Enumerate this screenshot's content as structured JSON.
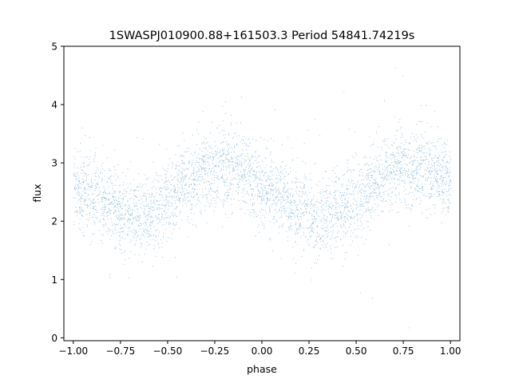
{
  "chart_data": {
    "type": "scatter",
    "title": "1SWASPJ010900.88+161503.3 Period 54841.74219s",
    "xlabel": "phase",
    "ylabel": "flux",
    "xlim": [
      -1.05,
      1.05
    ],
    "ylim": [
      -0.05,
      5.0
    ],
    "xticks": [
      -1.0,
      -0.75,
      -0.5,
      -0.25,
      0.0,
      0.25,
      0.5,
      0.75,
      1.0
    ],
    "xtick_labels": [
      "−1.00",
      "−0.75",
      "−0.50",
      "−0.25",
      "0.00",
      "0.25",
      "0.50",
      "0.75",
      "1.00"
    ],
    "yticks": [
      0,
      1,
      2,
      3,
      4,
      5
    ],
    "ytick_labels": [
      "0",
      "1",
      "2",
      "3",
      "4",
      "5"
    ],
    "grid": false,
    "legend": "none",
    "point_color": "#1f77b4",
    "profile": {
      "phase": [
        -1.0,
        -0.9,
        -0.8,
        -0.7,
        -0.6,
        -0.5,
        -0.4,
        -0.3,
        -0.2,
        -0.1,
        0.0,
        0.1,
        0.2,
        0.3,
        0.4,
        0.5,
        0.6,
        0.7,
        0.8,
        0.9,
        1.0
      ],
      "flux": [
        2.6,
        2.45,
        2.25,
        2.1,
        2.15,
        2.35,
        2.65,
        2.85,
        2.95,
        2.85,
        2.6,
        2.4,
        2.2,
        2.05,
        2.15,
        2.4,
        2.7,
        2.9,
        2.95,
        2.8,
        2.65
      ]
    },
    "scatter_sigma": 0.33
  }
}
